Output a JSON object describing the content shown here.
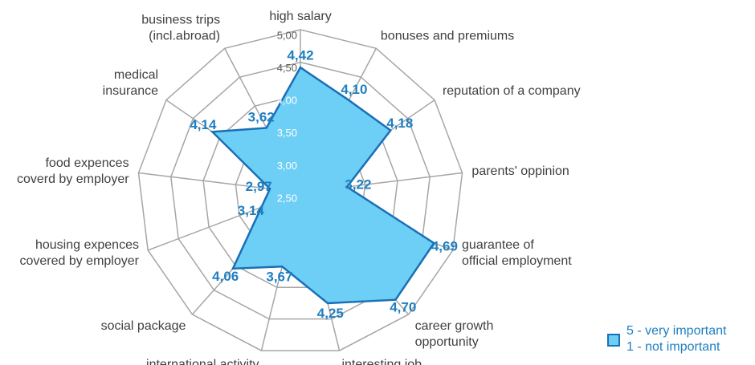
{
  "chart_data": {
    "type": "radar",
    "categories": [
      "high salary",
      "bonuses and premiums",
      "reputation of a company",
      "parents' oppinion",
      "guarantee of\nofficial employment",
      "career growth\nopportunity",
      "interesting job",
      "international activity",
      "social package",
      "housing expences\ncovered by employer",
      "food expences\ncoverd by employer",
      "medical\ninsurance",
      "business trips\n(incl.abroad)"
    ],
    "series": [
      {
        "name": "5 - very important\n1 - not important",
        "color": "#6dcff6",
        "line_color": "#1a6fb5",
        "values": [
          4.42,
          4.1,
          4.18,
          3.22,
          4.69,
          4.7,
          4.25,
          3.67,
          4.06,
          3.14,
          2.97,
          4.14,
          3.62
        ],
        "value_labels": [
          "4,42",
          "4,10",
          "4,18",
          "3,22",
          "4,69",
          "4,70",
          "4,25",
          "3,67",
          "4,06",
          "3,14",
          "2,97",
          "4,14",
          "3,62"
        ]
      }
    ],
    "rlim": [
      2.5,
      5
    ],
    "rticks": [
      {
        "value": 2.5,
        "label": "2,50"
      },
      {
        "value": 3.0,
        "label": "3,00"
      },
      {
        "value": 3.5,
        "label": "3,50"
      },
      {
        "value": 4.0,
        "label": "4,00"
      },
      {
        "value": 4.5,
        "label": "4,50"
      },
      {
        "value": 5.0,
        "label": "5,00"
      }
    ],
    "grid": true,
    "legend": "lower right"
  }
}
